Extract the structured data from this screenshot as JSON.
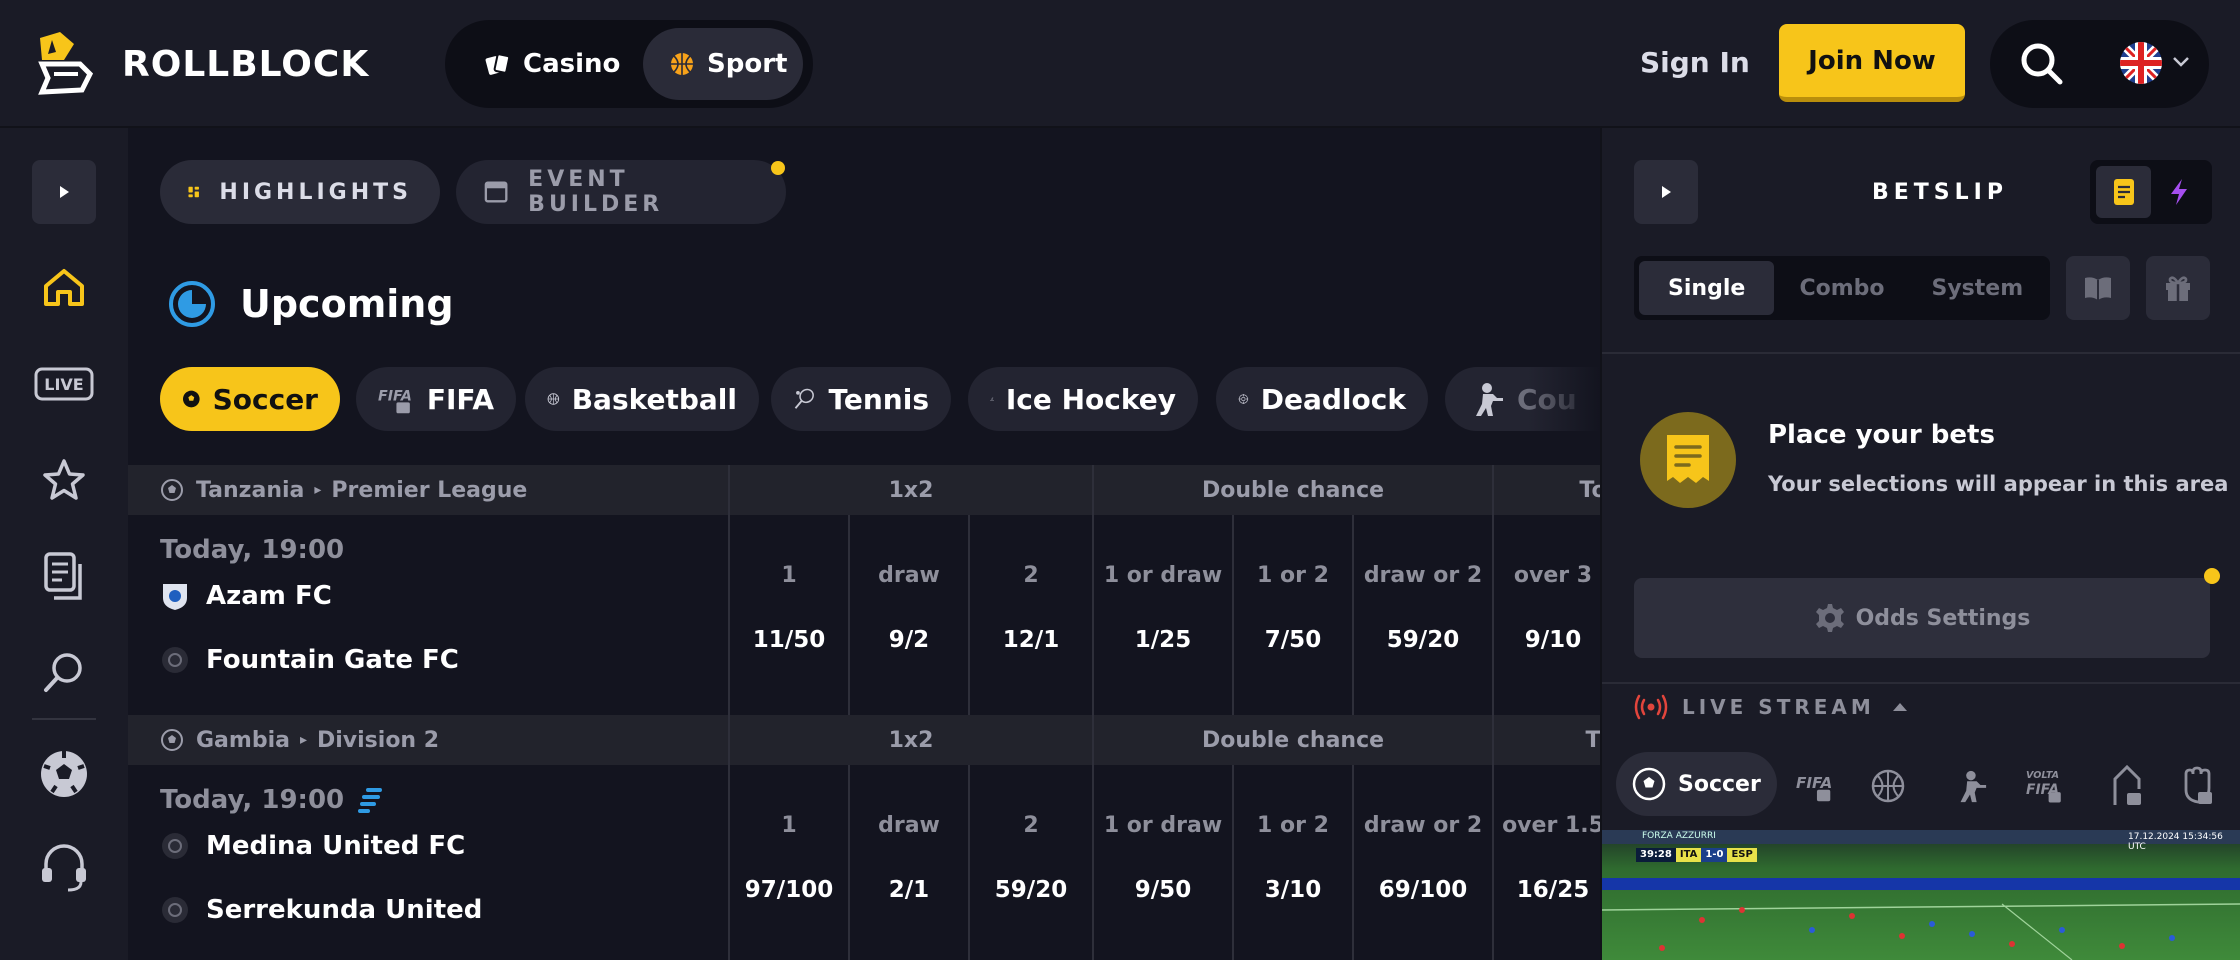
{
  "brand": {
    "name": "ROLLBLOCK"
  },
  "topbar": {
    "modes": [
      {
        "label": "Casino"
      },
      {
        "label": "Sport"
      }
    ],
    "sign_in": "Sign In",
    "join": "Join Now"
  },
  "leftnav": {
    "items": [
      "play-toggle",
      "home",
      "live",
      "favorites",
      "bet-history",
      "search",
      "soccer",
      "support"
    ],
    "live_label": "LIVE"
  },
  "main": {
    "tabs": [
      {
        "label": "HIGHLIGHTS"
      },
      {
        "label": "EVENT BUILDER"
      }
    ],
    "section_title": "Upcoming",
    "sports": [
      {
        "label": "Soccer",
        "icon": "soccer-ball-icon"
      },
      {
        "label": "FIFA",
        "icon": "fifa-icon"
      },
      {
        "label": "Basketball",
        "icon": "basketball-icon"
      },
      {
        "label": "Tennis",
        "icon": "tennis-icon"
      },
      {
        "label": "Ice Hockey",
        "icon": "hockey-icon"
      },
      {
        "label": "Deadlock",
        "icon": "deadlock-icon"
      },
      {
        "label": "Cou",
        "icon": "soldier-icon"
      }
    ]
  },
  "events": [
    {
      "country": "Tanzania",
      "league": "Premier League",
      "groups": [
        "1x2",
        "Double chance",
        "To"
      ],
      "time": "Today, 19:00",
      "team_home": "Azam FC",
      "team_away": "Fountain Gate FC",
      "odds": [
        {
          "label": "1",
          "value": "11/50"
        },
        {
          "label": "draw",
          "value": "9/2"
        },
        {
          "label": "2",
          "value": "12/1"
        },
        {
          "label": "1 or draw",
          "value": "1/25"
        },
        {
          "label": "1 or 2",
          "value": "7/50"
        },
        {
          "label": "draw or 2",
          "value": "59/20"
        },
        {
          "label": "over 3",
          "value": "9/10"
        }
      ]
    },
    {
      "country": "Gambia",
      "league": "Division 2",
      "groups": [
        "1x2",
        "Double chance",
        "T"
      ],
      "time": "Today, 19:00",
      "team_home": "Medina United FC",
      "team_away": "Serrekunda United",
      "odds": [
        {
          "label": "1",
          "value": "97/100"
        },
        {
          "label": "draw",
          "value": "2/1"
        },
        {
          "label": "2",
          "value": "59/20"
        },
        {
          "label": "1 or draw",
          "value": "9/50"
        },
        {
          "label": "1 or 2",
          "value": "3/10"
        },
        {
          "label": "draw or 2",
          "value": "69/100"
        },
        {
          "label": "over 1.5",
          "value": "16/25"
        }
      ]
    }
  ],
  "betslip": {
    "title": "BETSLIP",
    "bet_types": [
      "Single",
      "Combo",
      "System"
    ],
    "empty_title": "Place your bets",
    "empty_subtitle": "Your selections will appear in this area",
    "odds_settings": "Odds Settings",
    "live_stream": "LIVE STREAM",
    "stream_tabs": [
      {
        "label": "Soccer"
      }
    ],
    "stream": {
      "clock": "39:28",
      "home": "ITA",
      "score": "1-0",
      "away": "ESP",
      "banner": "FORZA AZZURRI",
      "timestamp": "17.12.2024 15:34:56 UTC"
    }
  },
  "colors": {
    "accent": "#f7c51a",
    "bg": "#13141f",
    "panel": "#1a1b26",
    "live_red": "#e2453c",
    "upcoming_blue": "#2f9be4"
  }
}
